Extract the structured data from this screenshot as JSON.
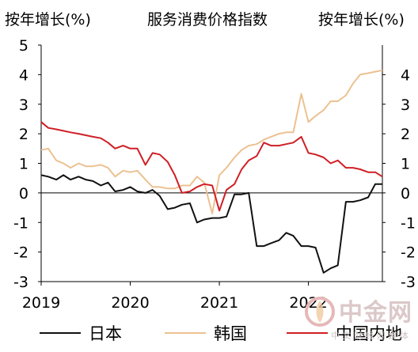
{
  "header": {
    "left_label": "按年增长(%)",
    "title": "服务消费价格指数",
    "right_label": "按年增长(%)"
  },
  "watermark": {
    "name": "中金网",
    "sub": "中 文 财 经 网 媒 体"
  },
  "colors": {
    "japan": "#111111",
    "korea": "#ecc191",
    "china": "#cf1f25",
    "axis": "#000000"
  },
  "chart_data": {
    "type": "line",
    "title": "服务消费价格指数",
    "ylabel": "按年增长(%)",
    "y2label": "按年增长(%)",
    "ylim": [
      -3,
      5
    ],
    "yticks": [
      "-3",
      "-2",
      "-1",
      "0",
      "1",
      "2",
      "3",
      "4",
      "5"
    ],
    "y2lim": [
      -3,
      5
    ],
    "y2ticks": [
      "-3",
      "-2",
      "-1",
      "0",
      "1",
      "2",
      "3",
      "4"
    ],
    "xlim": [
      2019.0,
      2022.83
    ],
    "xticks": [
      "2019",
      "2020",
      "2021",
      "2022"
    ],
    "grid": false,
    "legend_position": "bottom",
    "series": [
      {
        "name": "日本",
        "color_key": "japan",
        "points": [
          [
            2019.0,
            0.6
          ],
          [
            2019.08,
            0.55
          ],
          [
            2019.17,
            0.45
          ],
          [
            2019.25,
            0.6
          ],
          [
            2019.33,
            0.45
          ],
          [
            2019.42,
            0.55
          ],
          [
            2019.5,
            0.45
          ],
          [
            2019.58,
            0.4
          ],
          [
            2019.67,
            0.25
          ],
          [
            2019.75,
            0.35
          ],
          [
            2019.83,
            0.05
          ],
          [
            2019.92,
            0.1
          ],
          [
            2020.0,
            0.2
          ],
          [
            2020.08,
            0.05
          ],
          [
            2020.17,
            0.0
          ],
          [
            2020.25,
            0.1
          ],
          [
            2020.33,
            -0.1
          ],
          [
            2020.42,
            -0.55
          ],
          [
            2020.5,
            -0.5
          ],
          [
            2020.58,
            -0.4
          ],
          [
            2020.67,
            -0.35
          ],
          [
            2020.75,
            -1.0
          ],
          [
            2020.83,
            -0.9
          ],
          [
            2020.92,
            -0.85
          ],
          [
            2021.0,
            -0.85
          ],
          [
            2021.08,
            -0.8
          ],
          [
            2021.17,
            -0.05
          ],
          [
            2021.25,
            -0.05
          ],
          [
            2021.33,
            0.0
          ],
          [
            2021.42,
            -1.8
          ],
          [
            2021.5,
            -1.8
          ],
          [
            2021.58,
            -1.7
          ],
          [
            2021.67,
            -1.6
          ],
          [
            2021.75,
            -1.35
          ],
          [
            2021.83,
            -1.45
          ],
          [
            2021.92,
            -1.8
          ],
          [
            2022.0,
            -1.8
          ],
          [
            2022.08,
            -1.85
          ],
          [
            2022.17,
            -2.7
          ],
          [
            2022.25,
            -2.55
          ],
          [
            2022.33,
            -2.45
          ],
          [
            2022.42,
            -0.3
          ],
          [
            2022.5,
            -0.3
          ],
          [
            2022.58,
            -0.25
          ],
          [
            2022.67,
            -0.15
          ],
          [
            2022.75,
            0.3
          ],
          [
            2022.83,
            0.3
          ]
        ]
      },
      {
        "name": "韩国",
        "color_key": "korea",
        "points": [
          [
            2019.0,
            1.45
          ],
          [
            2019.08,
            1.5
          ],
          [
            2019.17,
            1.1
          ],
          [
            2019.25,
            1.0
          ],
          [
            2019.33,
            0.85
          ],
          [
            2019.42,
            1.0
          ],
          [
            2019.5,
            0.9
          ],
          [
            2019.58,
            0.9
          ],
          [
            2019.67,
            0.95
          ],
          [
            2019.75,
            0.85
          ],
          [
            2019.83,
            0.55
          ],
          [
            2019.92,
            0.75
          ],
          [
            2020.0,
            0.7
          ],
          [
            2020.08,
            0.75
          ],
          [
            2020.17,
            0.45
          ],
          [
            2020.25,
            0.2
          ],
          [
            2020.33,
            0.2
          ],
          [
            2020.42,
            0.15
          ],
          [
            2020.5,
            0.15
          ],
          [
            2020.58,
            0.25
          ],
          [
            2020.67,
            0.25
          ],
          [
            2020.75,
            0.55
          ],
          [
            2020.83,
            0.35
          ],
          [
            2020.92,
            -0.7
          ],
          [
            2021.0,
            0.6
          ],
          [
            2021.08,
            0.85
          ],
          [
            2021.17,
            1.2
          ],
          [
            2021.25,
            1.45
          ],
          [
            2021.33,
            1.6
          ],
          [
            2021.42,
            1.65
          ],
          [
            2021.5,
            1.8
          ],
          [
            2021.58,
            1.9
          ],
          [
            2021.67,
            2.0
          ],
          [
            2021.75,
            2.05
          ],
          [
            2021.83,
            2.05
          ],
          [
            2021.92,
            3.35
          ],
          [
            2022.0,
            2.4
          ],
          [
            2022.08,
            2.6
          ],
          [
            2022.17,
            2.8
          ],
          [
            2022.25,
            3.1
          ],
          [
            2022.33,
            3.1
          ],
          [
            2022.42,
            3.3
          ],
          [
            2022.5,
            3.7
          ],
          [
            2022.58,
            4.0
          ],
          [
            2022.67,
            4.05
          ],
          [
            2022.75,
            4.1
          ],
          [
            2022.83,
            4.15
          ]
        ]
      },
      {
        "name": "中国内地",
        "color_key": "china",
        "points": [
          [
            2019.0,
            2.4
          ],
          [
            2019.08,
            2.2
          ],
          [
            2019.17,
            2.15
          ],
          [
            2019.25,
            2.1
          ],
          [
            2019.33,
            2.05
          ],
          [
            2019.42,
            2.0
          ],
          [
            2019.5,
            1.95
          ],
          [
            2019.58,
            1.9
          ],
          [
            2019.67,
            1.85
          ],
          [
            2019.75,
            1.7
          ],
          [
            2019.83,
            1.5
          ],
          [
            2019.92,
            1.6
          ],
          [
            2020.0,
            1.5
          ],
          [
            2020.08,
            1.5
          ],
          [
            2020.17,
            0.95
          ],
          [
            2020.25,
            1.35
          ],
          [
            2020.33,
            1.3
          ],
          [
            2020.42,
            1.05
          ],
          [
            2020.5,
            0.6
          ],
          [
            2020.58,
            0.0
          ],
          [
            2020.67,
            0.05
          ],
          [
            2020.75,
            0.2
          ],
          [
            2020.83,
            0.3
          ],
          [
            2020.92,
            0.25
          ],
          [
            2021.0,
            -0.6
          ],
          [
            2021.08,
            0.1
          ],
          [
            2021.17,
            0.3
          ],
          [
            2021.25,
            0.8
          ],
          [
            2021.33,
            1.1
          ],
          [
            2021.42,
            1.25
          ],
          [
            2021.5,
            1.7
          ],
          [
            2021.58,
            1.6
          ],
          [
            2021.67,
            1.6
          ],
          [
            2021.75,
            1.65
          ],
          [
            2021.83,
            1.7
          ],
          [
            2021.92,
            1.9
          ],
          [
            2022.0,
            1.35
          ],
          [
            2022.08,
            1.3
          ],
          [
            2022.17,
            1.2
          ],
          [
            2022.25,
            1.0
          ],
          [
            2022.33,
            1.1
          ],
          [
            2022.42,
            0.85
          ],
          [
            2022.5,
            0.85
          ],
          [
            2022.58,
            0.8
          ],
          [
            2022.67,
            0.7
          ],
          [
            2022.75,
            0.7
          ],
          [
            2022.83,
            0.55
          ]
        ]
      }
    ]
  }
}
